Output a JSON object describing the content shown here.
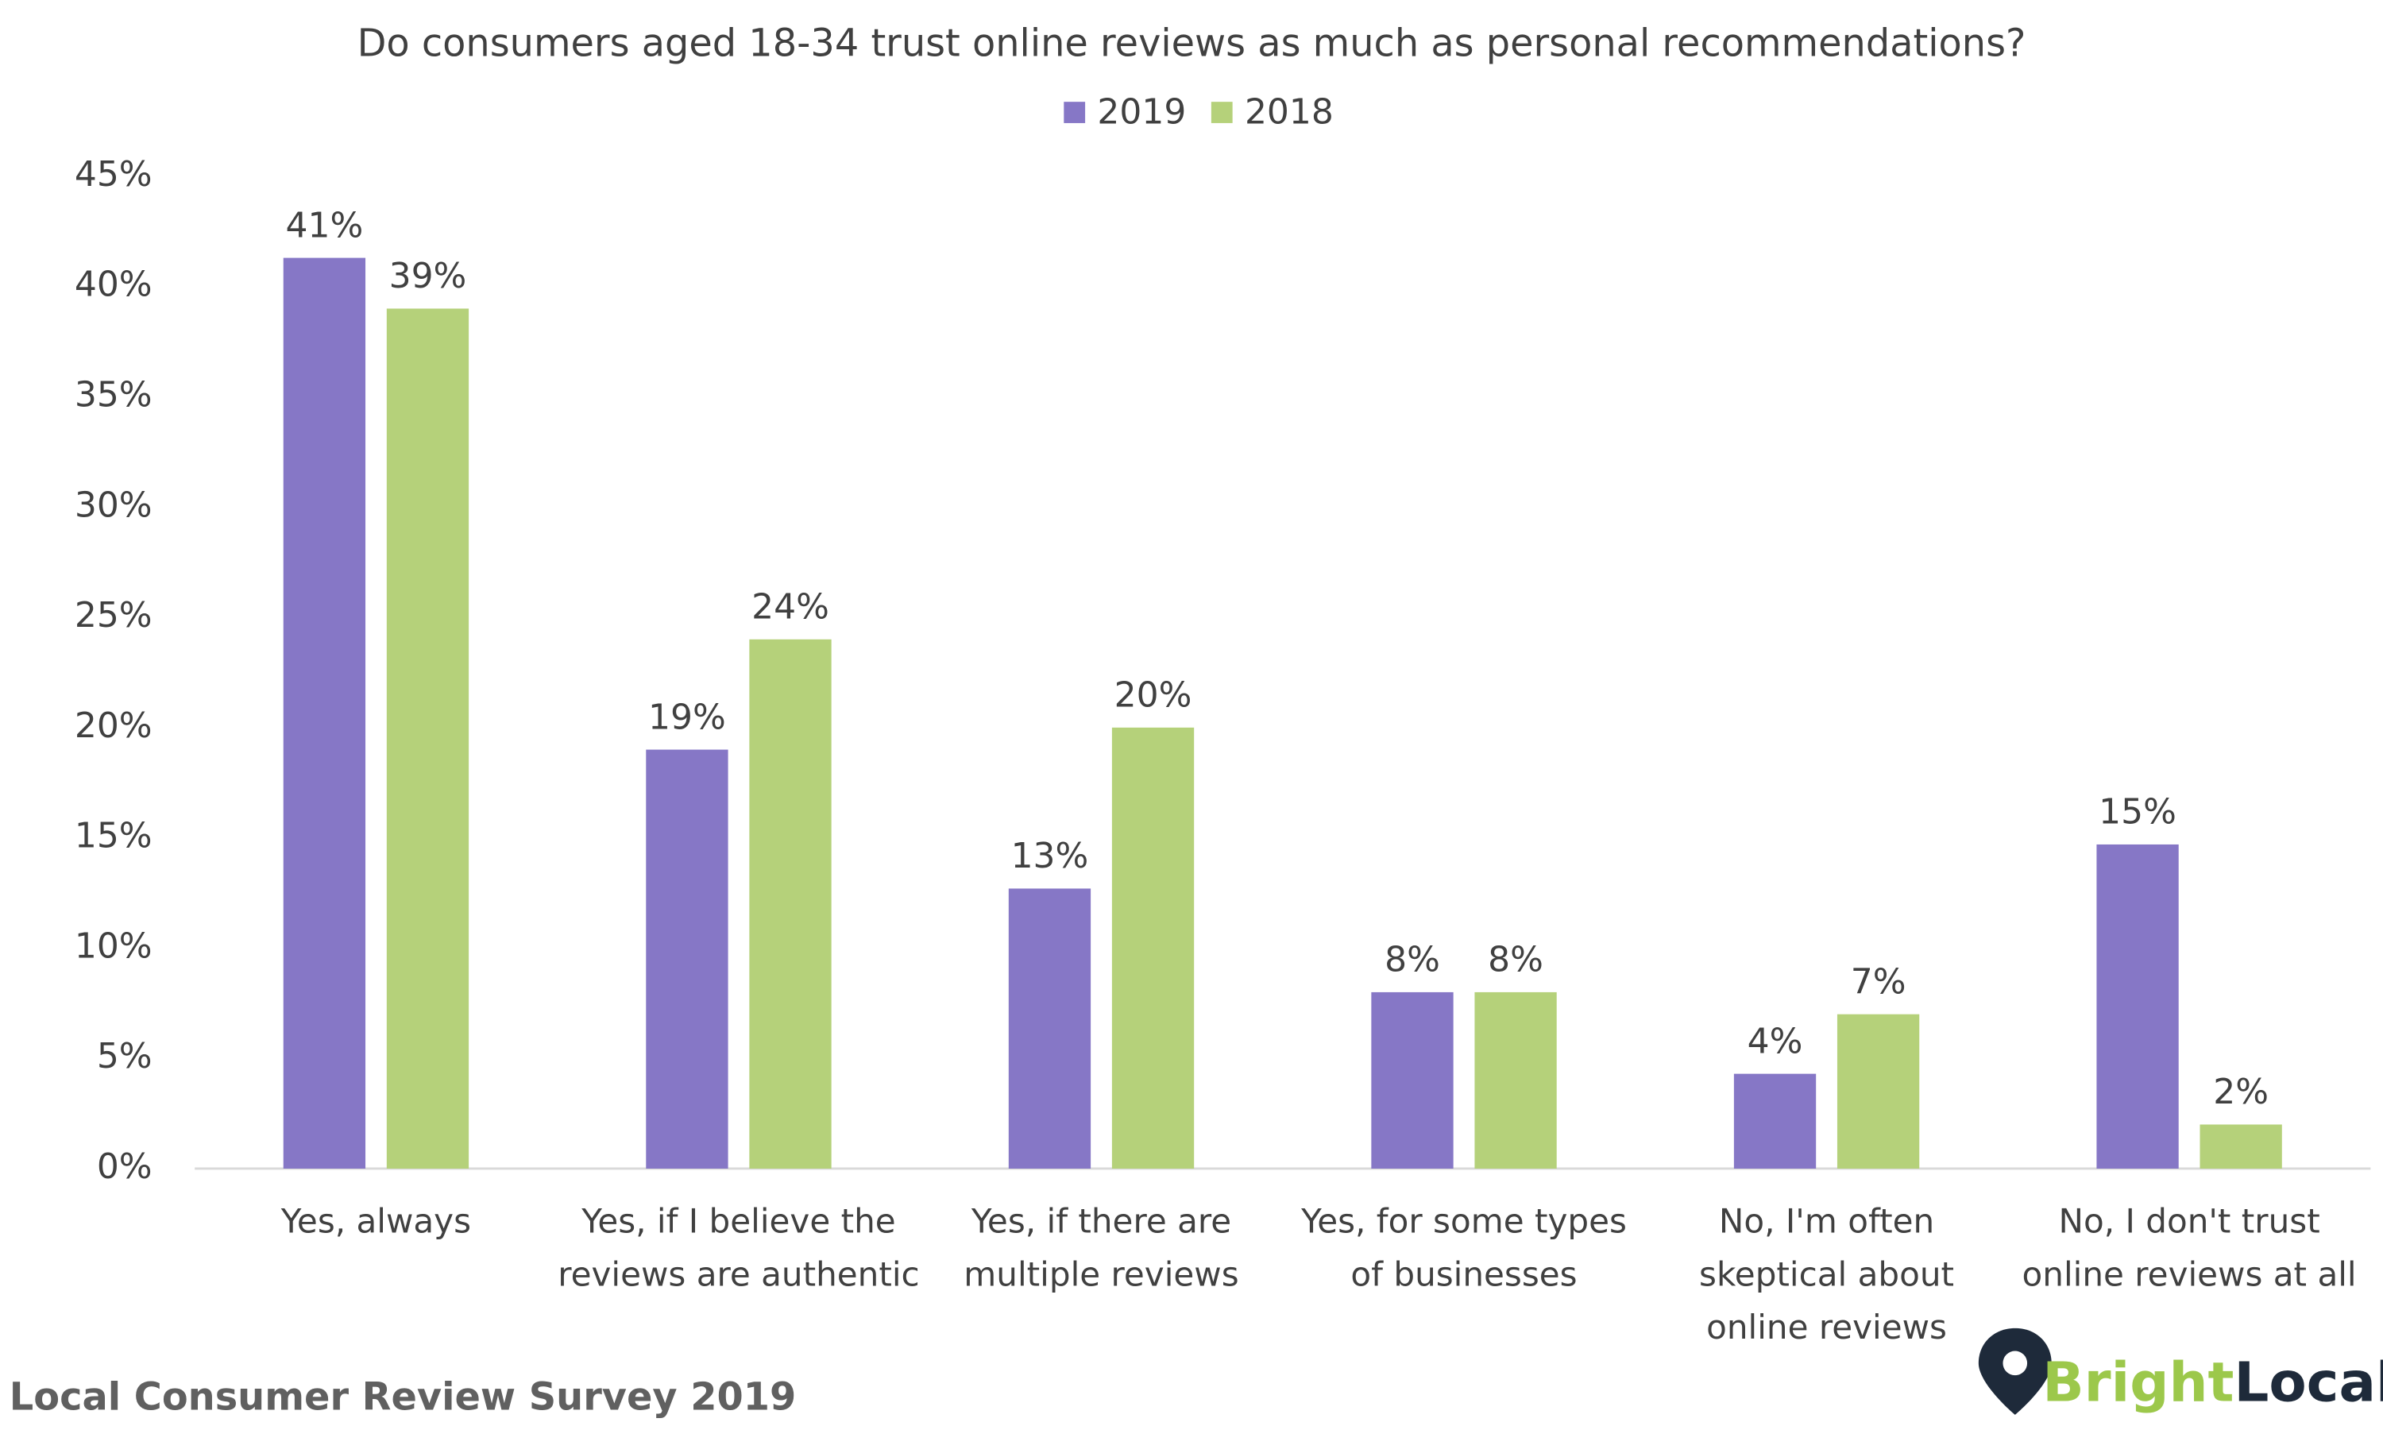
{
  "chart_data": {
    "type": "bar",
    "title": "Do consumers aged 18-34 trust online reviews as much as personal recommendations?",
    "categories": [
      "Yes, always",
      "Yes, if I believe the reviews are authentic",
      "Yes, if there are multiple reviews",
      "Yes, for some types of businesses",
      "No, I'm often skeptical about online reviews",
      "No, I don't trust online reviews at all"
    ],
    "series": [
      {
        "name": "2019",
        "color": "#8677c6",
        "values": [
          41.3,
          19,
          12.7,
          8,
          4.3,
          14.7
        ],
        "value_labels": [
          "41%",
          "19%",
          "13%",
          "8%",
          "4%",
          "15%"
        ]
      },
      {
        "name": "2018",
        "color": "#b5d17a",
        "values": [
          39,
          24,
          20,
          8,
          7,
          2
        ],
        "value_labels": [
          "39%",
          "24%",
          "20%",
          "8%",
          "7%",
          "2%"
        ]
      }
    ],
    "ylim": [
      0,
      45
    ],
    "yticks": [
      {
        "value": 0,
        "label": "0%"
      },
      {
        "value": 5,
        "label": "5%"
      },
      {
        "value": 10,
        "label": "10%"
      },
      {
        "value": 15,
        "label": "15%"
      },
      {
        "value": 20,
        "label": "20%"
      },
      {
        "value": 25,
        "label": "25%"
      },
      {
        "value": 30,
        "label": "30%"
      },
      {
        "value": 35,
        "label": "35%"
      },
      {
        "value": 40,
        "label": "40%"
      },
      {
        "value": 45,
        "label": "45%"
      }
    ],
    "grid": false,
    "legend": "top"
  },
  "footer": {
    "source": "Local Consumer Review Survey 2019",
    "brand": [
      "Bright",
      "Local"
    ]
  }
}
